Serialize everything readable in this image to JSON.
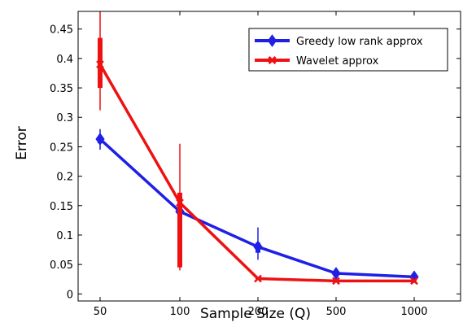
{
  "chart_data": {
    "type": "line",
    "title": "",
    "xlabel": "Sample Size (Q)",
    "ylabel": "Error",
    "x_scale": "categorical",
    "categories": [
      "50",
      "100",
      "200",
      "500",
      "1000"
    ],
    "ylim": [
      -0.012,
      0.48
    ],
    "yticks": [
      0,
      0.05,
      0.1,
      0.15,
      0.2,
      0.25,
      0.3,
      0.35,
      0.4,
      0.45
    ],
    "ytick_labels": [
      "0",
      "0.05",
      "0.1",
      "0.15",
      "0.2",
      "0.25",
      "0.3",
      "0.35",
      "0.4",
      "0.45"
    ],
    "grid": false,
    "legend_position": "top-right",
    "series": [
      {
        "name": "Greedy low rank approx",
        "color": "#1f1fe6",
        "marker": "diamond",
        "values": [
          0.263,
          0.14,
          0.08,
          0.035,
          0.029
        ],
        "box_low": [
          0.256,
          0.135,
          0.07,
          0.033,
          0.027
        ],
        "box_high": [
          0.268,
          0.145,
          0.087,
          0.037,
          0.031
        ],
        "whisker_low": [
          0.245,
          0.13,
          0.058,
          0.032,
          0.026
        ],
        "whisker_high": [
          0.28,
          0.15,
          0.113,
          0.038,
          0.032
        ]
      },
      {
        "name": "Wavelet approx",
        "color": "#ee1111",
        "marker": "x",
        "values": [
          0.39,
          0.155,
          0.026,
          0.022,
          0.022
        ],
        "box_low": [
          0.35,
          0.045,
          0.025,
          0.021,
          0.021
        ],
        "box_high": [
          0.435,
          0.172,
          0.028,
          0.023,
          0.023
        ],
        "whisker_low": [
          0.312,
          0.04,
          0.024,
          0.02,
          0.02
        ],
        "whisker_high": [
          0.478,
          0.255,
          0.029,
          0.024,
          0.024
        ]
      }
    ]
  }
}
